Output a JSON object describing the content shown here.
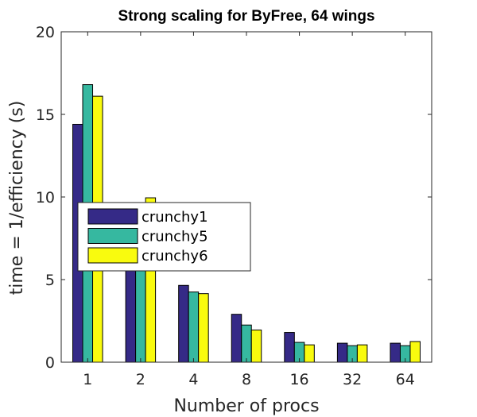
{
  "chart_data": {
    "type": "bar",
    "title": "Strong scaling for ByFree, 64 wings",
    "xlabel": "Number of procs",
    "ylabel": "time = 1/efficiency (s)",
    "categories": [
      "1",
      "2",
      "4",
      "8",
      "16",
      "32",
      "64"
    ],
    "ylim": [
      0,
      20
    ],
    "yticks": [
      0,
      5,
      10,
      15,
      20
    ],
    "grid": false,
    "legend_position": "middle-left",
    "series": [
      {
        "name": "crunchy1",
        "color": "#352a87",
        "values": [
          14.4,
          5.9,
          4.65,
          2.9,
          1.8,
          1.15,
          1.15
        ]
      },
      {
        "name": "crunchy5",
        "color": "#36b8a0",
        "values": [
          16.8,
          5.9,
          4.25,
          2.25,
          1.2,
          1.0,
          1.0
        ]
      },
      {
        "name": "crunchy6",
        "color": "#f9fb0e",
        "values": [
          16.1,
          9.95,
          4.15,
          1.95,
          1.05,
          1.05,
          1.25
        ]
      }
    ]
  }
}
